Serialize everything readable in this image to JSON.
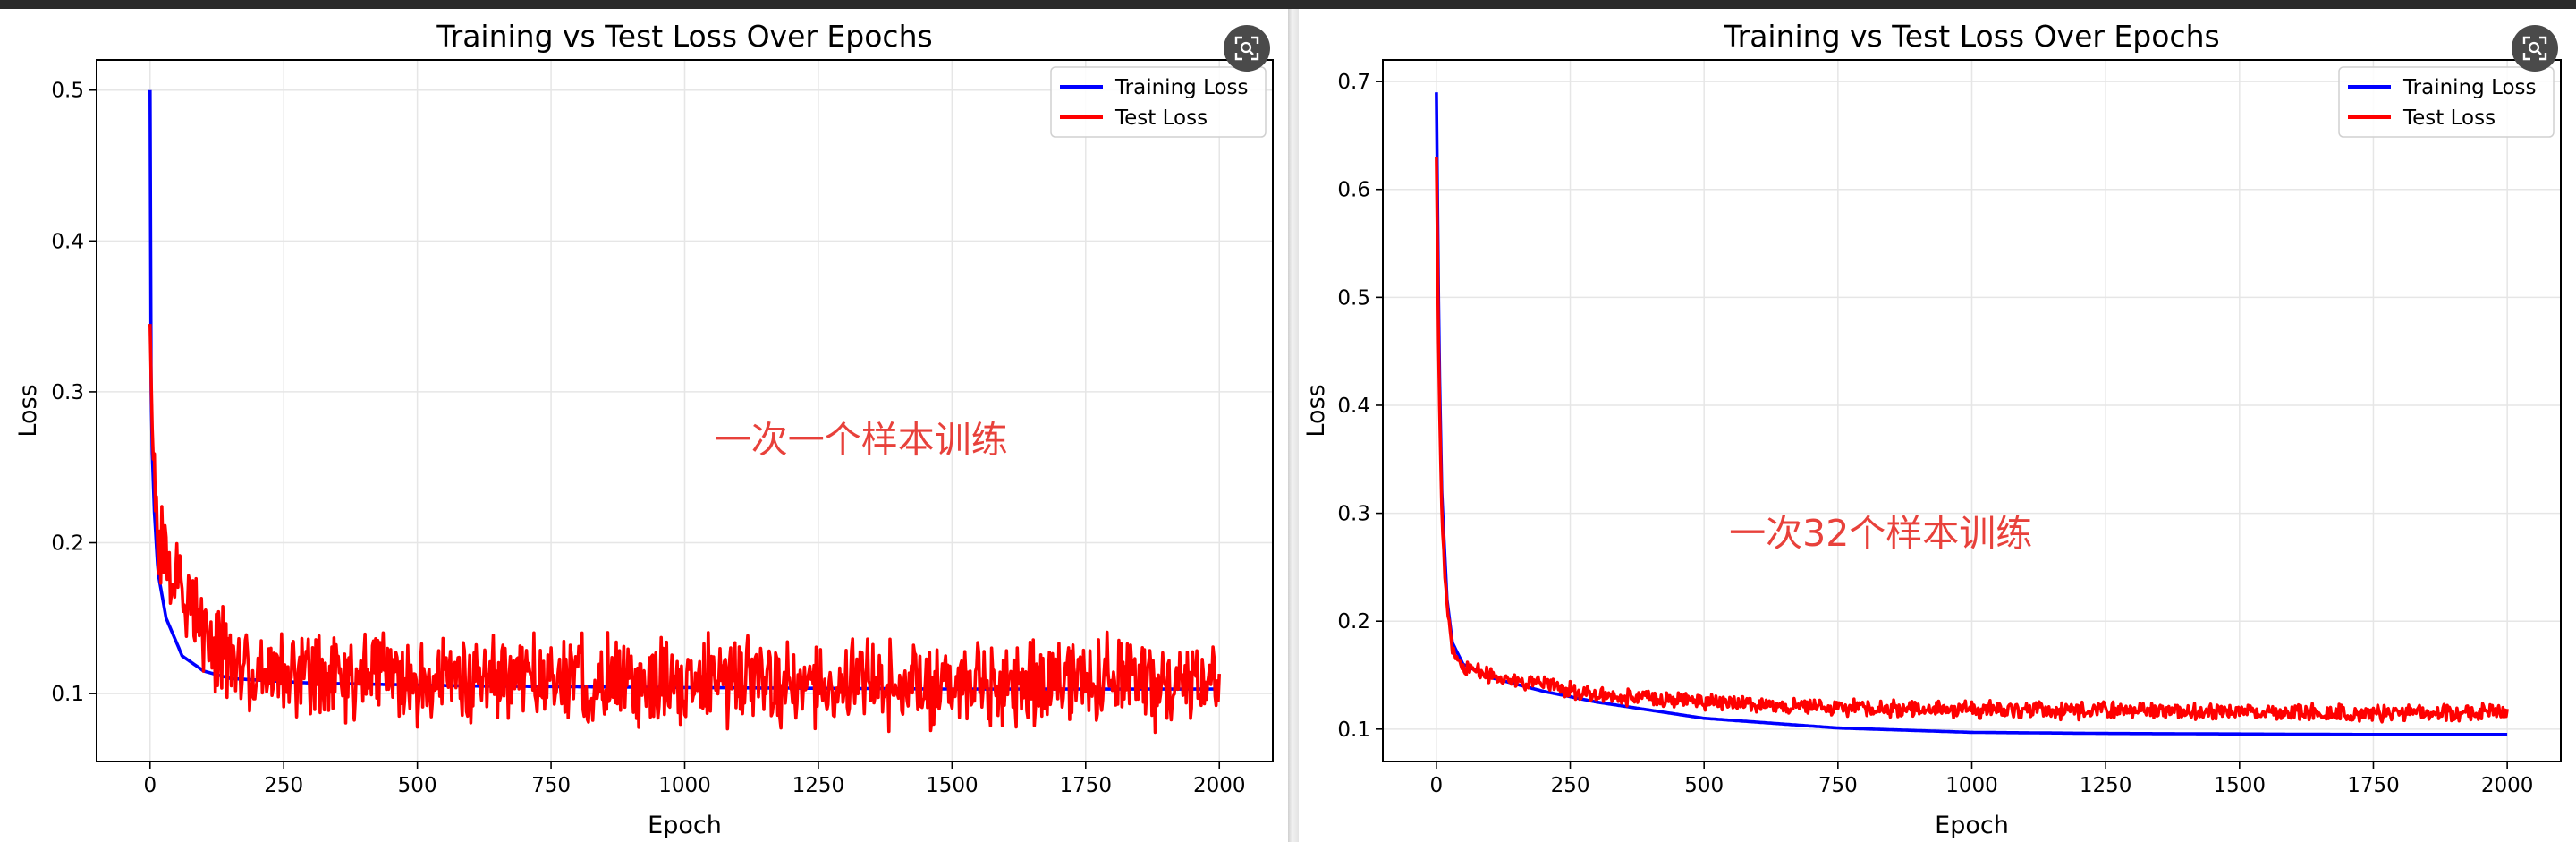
{
  "colors": {
    "training": "#0000ff",
    "test": "#ff0000",
    "annotation": "#e8413b",
    "grid": "#e6e6e6",
    "button": "#4a4a4a"
  },
  "icons": {
    "expand": "expand-fullscreen-icon"
  },
  "chart_data": [
    {
      "type": "line",
      "title": "Training vs Test Loss Over Epochs",
      "xlabel": "Epoch",
      "ylabel": "Loss",
      "xlim": [
        -100,
        2100
      ],
      "ylim": [
        0.055,
        0.52
      ],
      "xticks": [
        0,
        250,
        500,
        750,
        1000,
        1250,
        1500,
        1750,
        2000
      ],
      "yticks": [
        0.1,
        0.2,
        0.3,
        0.4,
        0.5
      ],
      "ytick_labels": [
        "0.1",
        "0.2",
        "0.3",
        "0.4",
        "0.5"
      ],
      "grid": true,
      "legend_position": "top-right",
      "annotation": {
        "text": "一次一个样本训练",
        "x": 1330,
        "y": 0.26
      },
      "series": [
        {
          "name": "Training Loss",
          "color": "#0000ff",
          "points": [
            [
              0,
              0.5
            ],
            [
              1,
              0.35
            ],
            [
              2,
              0.3
            ],
            [
              4,
              0.26
            ],
            [
              8,
              0.22
            ],
            [
              15,
              0.18
            ],
            [
              30,
              0.15
            ],
            [
              60,
              0.125
            ],
            [
              100,
              0.115
            ],
            [
              150,
              0.11
            ],
            [
              300,
              0.107
            ],
            [
              600,
              0.105
            ],
            [
              1000,
              0.104
            ],
            [
              1500,
              0.103
            ],
            [
              2000,
              0.103
            ]
          ],
          "noise": 0.0
        },
        {
          "name": "Test Loss",
          "color": "#ff0000",
          "points": [
            [
              0,
              0.345
            ],
            [
              3,
              0.29
            ],
            [
              8,
              0.25
            ],
            [
              15,
              0.21
            ],
            [
              30,
              0.19
            ],
            [
              50,
              0.17
            ],
            [
              80,
              0.15
            ],
            [
              120,
              0.13
            ],
            [
              200,
              0.115
            ],
            [
              400,
              0.11
            ],
            [
              1000,
              0.108
            ],
            [
              1500,
              0.107
            ],
            [
              2000,
              0.108
            ]
          ],
          "noise": 0.045
        }
      ]
    },
    {
      "type": "line",
      "title": "Training vs Test Loss Over Epochs",
      "xlabel": "Epoch",
      "ylabel": "Loss",
      "xlim": [
        -100,
        2100
      ],
      "ylim": [
        0.07,
        0.72
      ],
      "xticks": [
        0,
        250,
        500,
        750,
        1000,
        1250,
        1500,
        1750,
        2000
      ],
      "yticks": [
        0.1,
        0.2,
        0.3,
        0.4,
        0.5,
        0.6,
        0.7
      ],
      "ytick_labels": [
        "0.1",
        "0.2",
        "0.3",
        "0.4",
        "0.5",
        "0.6",
        "0.7"
      ],
      "grid": true,
      "legend_position": "top-right",
      "annotation": {
        "text": "一次32个样本训练",
        "x": 830,
        "y": 0.27
      },
      "series": [
        {
          "name": "Training Loss",
          "color": "#0000ff",
          "points": [
            [
              0,
              0.69
            ],
            [
              5,
              0.45
            ],
            [
              10,
              0.32
            ],
            [
              20,
              0.22
            ],
            [
              30,
              0.18
            ],
            [
              50,
              0.16
            ],
            [
              100,
              0.148
            ],
            [
              200,
              0.135
            ],
            [
              300,
              0.125
            ],
            [
              500,
              0.11
            ],
            [
              750,
              0.101
            ],
            [
              1000,
              0.097
            ],
            [
              1250,
              0.096
            ],
            [
              1500,
              0.0955
            ],
            [
              1750,
              0.095
            ],
            [
              2000,
              0.095
            ]
          ],
          "noise": 0.0
        },
        {
          "name": "Test Loss",
          "color": "#ff0000",
          "points": [
            [
              0,
              0.63
            ],
            [
              5,
              0.42
            ],
            [
              10,
              0.3
            ],
            [
              20,
              0.21
            ],
            [
              30,
              0.175
            ],
            [
              50,
              0.158
            ],
            [
              100,
              0.15
            ],
            [
              200,
              0.14
            ],
            [
              300,
              0.132
            ],
            [
              500,
              0.125
            ],
            [
              750,
              0.12
            ],
            [
              1000,
              0.118
            ],
            [
              1250,
              0.117
            ],
            [
              1500,
              0.116
            ],
            [
              1750,
              0.115
            ],
            [
              2000,
              0.116
            ]
          ],
          "noise": 0.012
        }
      ]
    }
  ]
}
